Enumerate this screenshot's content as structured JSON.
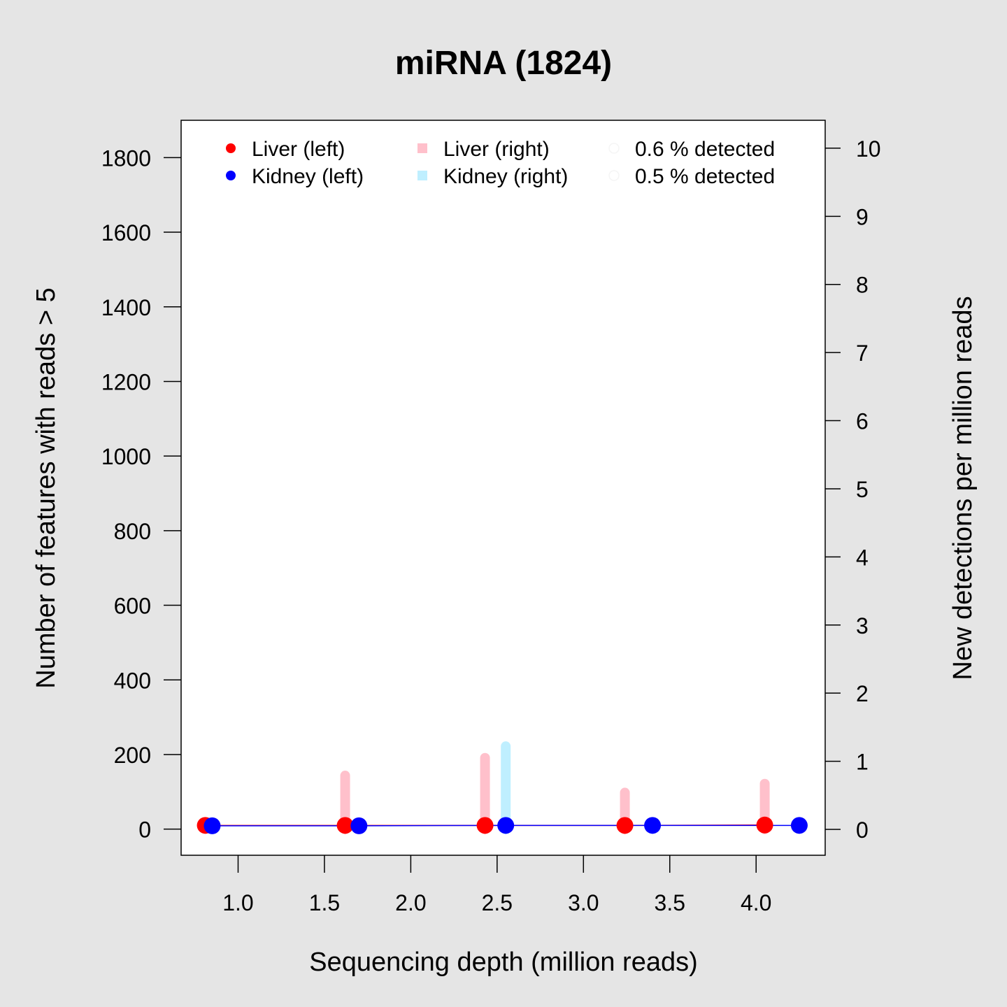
{
  "chart_data": {
    "type": "scatter",
    "title": "miRNA (1824)",
    "xlabel": "Sequencing depth (million reads)",
    "ylabel_left": "Number of features with reads > 5",
    "ylabel_right": "New detections per million reads",
    "xlim": [
      0.67,
      4.4
    ],
    "ylim_left": [
      -70,
      1900
    ],
    "ylim_right": [
      -0.38,
      10.41
    ],
    "x_ticks": [
      "1.0",
      "1.5",
      "2.0",
      "2.5",
      "3.0",
      "3.5",
      "4.0"
    ],
    "y_left_ticks": [
      "0",
      "200",
      "400",
      "600",
      "800",
      "1000",
      "1200",
      "1400",
      "1600",
      "1800"
    ],
    "y_right_ticks": [
      "0",
      "1",
      "2",
      "3",
      "4",
      "5",
      "6",
      "7",
      "8",
      "9",
      "10"
    ],
    "legend": {
      "placement": "top",
      "entries": [
        {
          "label": "Liver (left)",
          "color": "#ff0000",
          "symbol": "circle"
        },
        {
          "label": "Kidney (left)",
          "color": "#0000ff",
          "symbol": "circle"
        },
        {
          "label": "Liver (right)",
          "color": "#ffc0cb",
          "symbol": "square"
        },
        {
          "label": "Kidney (right)",
          "color": "#bfefff",
          "symbol": "square"
        },
        {
          "label": "0.6 % detected",
          "color": "#f5f5f5",
          "symbol": "open-circle"
        },
        {
          "label": "0.5 % detected",
          "color": "#f5f5f5",
          "symbol": "open-circle"
        }
      ]
    },
    "series": [
      {
        "name": "Liver (left)",
        "axis": "left",
        "kind": "points",
        "color": "#ff0000",
        "line_color": "#ff0000",
        "x": [
          0.81,
          1.62,
          2.43,
          3.24,
          4.05
        ],
        "y": [
          10,
          10,
          10,
          10,
          11
        ]
      },
      {
        "name": "Kidney (left)",
        "axis": "left",
        "kind": "points",
        "color": "#0000ff",
        "line_color": "#0000ff",
        "x": [
          0.85,
          1.7,
          2.55,
          3.4,
          4.25
        ],
        "y": [
          9,
          9,
          10,
          10,
          10
        ]
      },
      {
        "name": "Liver (right)",
        "axis": "right",
        "kind": "bars",
        "color": "#ffc0cb",
        "x": [
          1.62,
          2.43,
          3.24,
          4.05
        ],
        "y": [
          0.79,
          1.05,
          0.54,
          0.67
        ]
      },
      {
        "name": "Kidney (right)",
        "axis": "right",
        "kind": "bars",
        "color": "#bfefff",
        "x": [
          2.55
        ],
        "y": [
          1.22
        ]
      }
    ],
    "grid": false
  }
}
